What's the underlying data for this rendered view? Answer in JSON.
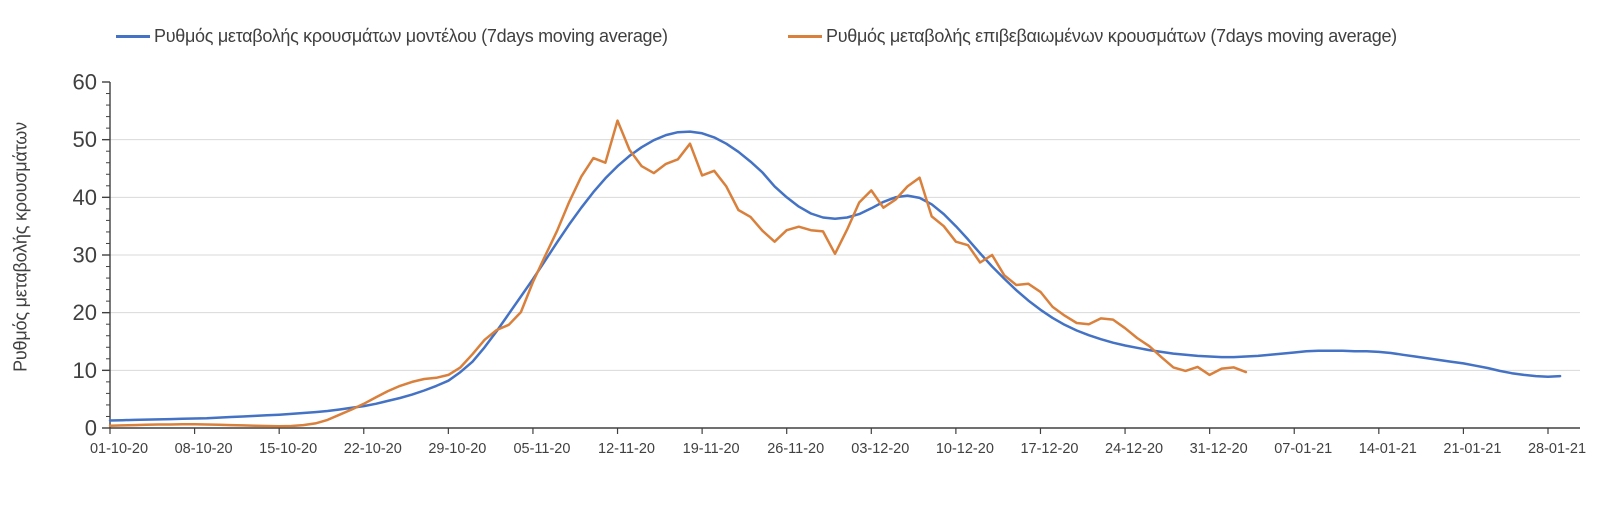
{
  "page": {
    "background": "#ffffff"
  },
  "legend": {
    "items": [
      {
        "id": "model",
        "label": "Ρυθμός μεταβολής κρουσμάτων μοντέλου (7days moving average)",
        "color": "#4472C4"
      },
      {
        "id": "confirmed",
        "label": "Ρυθμός μεταβολής επιβεβαιωμένων κρουσμάτων (7days moving average)",
        "color": "#D9803C"
      }
    ]
  },
  "chart_data": {
    "type": "line",
    "title": "",
    "xlabel": "",
    "ylabel": "Ρυθμός μεταβολής κρουσμάτων",
    "ylim": [
      0,
      60
    ],
    "y_tick_labels": [
      "0",
      "10",
      "20",
      "30",
      "40",
      "50",
      "60"
    ],
    "y_major_tick_step": 10,
    "y_minor_tick_step": 2,
    "grid": "horizontal light-gray gridlines at 10,20,30,40,50",
    "legend_position": "top",
    "x_axis_type": "daily dates, tick label every 7 days",
    "x_tick_interval_days": 7,
    "x_tick_labels": [
      "01-10-20",
      "08-10-20",
      "15-10-20",
      "22-10-20",
      "29-10-20",
      "05-11-20",
      "12-11-20",
      "19-11-20",
      "26-11-20",
      "03-12-20",
      "10-12-20",
      "17-12-20",
      "24-12-20",
      "31-12-20",
      "07-01-21",
      "14-01-21",
      "21-01-21",
      "28-01-21"
    ],
    "series": [
      {
        "id": "model",
        "name": "Ρυθμός μεταβολής κρουσμάτων μοντέλου (7days moving average)",
        "color": "#4472C4",
        "start_date": "01-10-20",
        "start_day_index": 0,
        "daily_values": [
          1.3,
          1.35,
          1.4,
          1.45,
          1.5,
          1.55,
          1.6,
          1.65,
          1.7,
          1.8,
          1.9,
          2.0,
          2.1,
          2.2,
          2.3,
          2.45,
          2.6,
          2.75,
          2.95,
          3.2,
          3.5,
          3.8,
          4.2,
          4.7,
          5.2,
          5.8,
          6.5,
          7.3,
          8.2,
          9.7,
          11.5,
          14.0,
          16.8,
          19.8,
          22.8,
          25.8,
          29.0,
          32.2,
          35.3,
          38.2,
          40.9,
          43.3,
          45.4,
          47.2,
          48.7,
          49.9,
          50.8,
          51.3,
          51.4,
          51.1,
          50.4,
          49.3,
          47.9,
          46.2,
          44.3,
          41.9,
          40.0,
          38.4,
          37.2,
          36.5,
          36.3,
          36.5,
          37.1,
          38.1,
          39.2,
          40.0,
          40.3,
          39.9,
          38.8,
          37.1,
          35.0,
          32.7,
          30.3,
          28.0,
          25.9,
          23.9,
          22.1,
          20.5,
          19.1,
          17.9,
          16.9,
          16.1,
          15.4,
          14.8,
          14.3,
          13.9,
          13.5,
          13.2,
          12.9,
          12.7,
          12.5,
          12.4,
          12.3,
          12.3,
          12.4,
          12.5,
          12.7,
          12.9,
          13.1,
          13.3,
          13.4,
          13.4,
          13.4,
          13.3,
          13.3,
          13.2,
          13.0,
          12.7,
          12.4,
          12.1,
          11.8,
          11.5,
          11.2,
          10.8,
          10.4,
          9.9,
          9.5,
          9.2,
          9.0,
          8.9,
          9.0
        ]
      },
      {
        "id": "confirmed",
        "name": "Ρυθμός μεταβολής επιβεβαιωμένων κρουσμάτων (7days moving average)",
        "color": "#D9803C",
        "start_date": "01-10-20",
        "start_day_index": 0,
        "daily_values": [
          0.4,
          0.45,
          0.5,
          0.55,
          0.6,
          0.6,
          0.65,
          0.65,
          0.6,
          0.55,
          0.5,
          0.45,
          0.4,
          0.35,
          0.3,
          0.35,
          0.5,
          0.8,
          1.4,
          2.3,
          3.2,
          4.2,
          5.3,
          6.4,
          7.3,
          8.0,
          8.5,
          8.7,
          9.2,
          10.5,
          12.8,
          15.3,
          17.0,
          17.9,
          20.1,
          25.3,
          29.8,
          34.2,
          39.2,
          43.6,
          46.8,
          46.0,
          53.3,
          48.2,
          45.4,
          44.2,
          45.8,
          46.6,
          49.3,
          43.8,
          44.6,
          41.9,
          37.8,
          36.6,
          34.2,
          32.3,
          34.3,
          34.9,
          34.3,
          34.1,
          30.2,
          34.4,
          39.1,
          41.2,
          38.2,
          39.6,
          41.9,
          43.4,
          36.7,
          35.0,
          32.3,
          31.7,
          28.7,
          30.0,
          26.5,
          24.8,
          25.0,
          23.6,
          21.0,
          19.5,
          18.2,
          18.0,
          19.0,
          18.8,
          17.3,
          15.6,
          14.2,
          12.3,
          10.5,
          9.9,
          10.6,
          9.2,
          10.3,
          10.5,
          9.7
        ]
      }
    ]
  },
  "style": {
    "gridline_color": "#D9D9D9",
    "axis_color": "#404040",
    "text_color": "#404040"
  }
}
